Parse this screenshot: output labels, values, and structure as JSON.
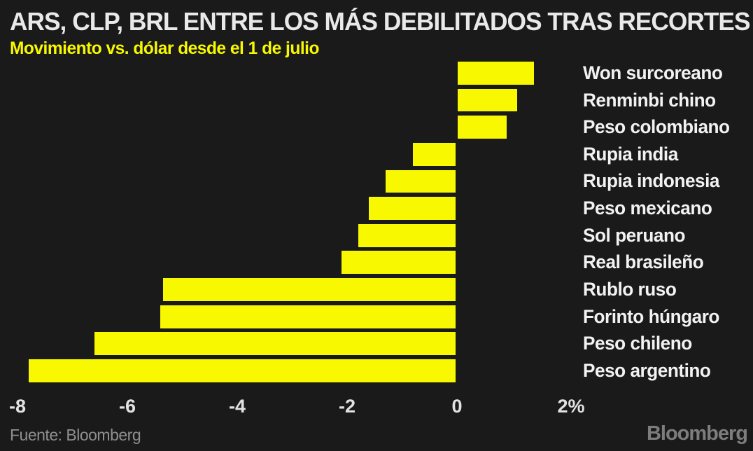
{
  "header": {
    "title": "ARS, CLP, BRL ENTRE LOS MÁS DEBILITADOS TRAS RECORTES",
    "subtitle": "Movimiento vs. dólar desde el 1 de julio"
  },
  "chart_data": {
    "type": "bar",
    "orientation": "horizontal",
    "title": "ARS, CLP, BRL ENTRE LOS MÁS DEBILITADOS TRAS RECORTES",
    "subtitle": "Movimiento vs. dólar desde el 1 de julio",
    "categories": [
      "Won surcoreano",
      "Renminbi chino",
      "Peso colombiano",
      "Rupia india",
      "Rupia indonesia",
      "Peso mexicano",
      "Sol peruano",
      "Real brasileño",
      "Rublo ruso",
      "Forinto húngaro",
      "Peso chileno",
      "Peso argentino"
    ],
    "values": [
      1.4,
      1.1,
      0.9,
      -0.8,
      -1.3,
      -1.6,
      -1.8,
      -2.1,
      -5.35,
      -5.4,
      -6.6,
      -7.8
    ],
    "unit": "%",
    "xlabel": "",
    "ylabel": "",
    "xlim": [
      -8,
      2.4
    ],
    "x_ticks": [
      {
        "value": -8,
        "label": "-8"
      },
      {
        "value": -6,
        "label": "-6"
      },
      {
        "value": -4,
        "label": "-4"
      },
      {
        "value": -2,
        "label": "-2"
      },
      {
        "value": 0,
        "label": "0"
      },
      {
        "value": 2,
        "label": "2%"
      }
    ],
    "grid": false,
    "legend_position": "none",
    "category_label_position": "right",
    "bar_color": "#f8f800",
    "background_color": "#1a1a1a",
    "title_color": "#e9e9e9",
    "subtitle_color": "#f8f800",
    "label_color": "#f2f2f2"
  },
  "footer": {
    "source": "Fuente: Bloomberg",
    "logo": "Bloomberg"
  }
}
